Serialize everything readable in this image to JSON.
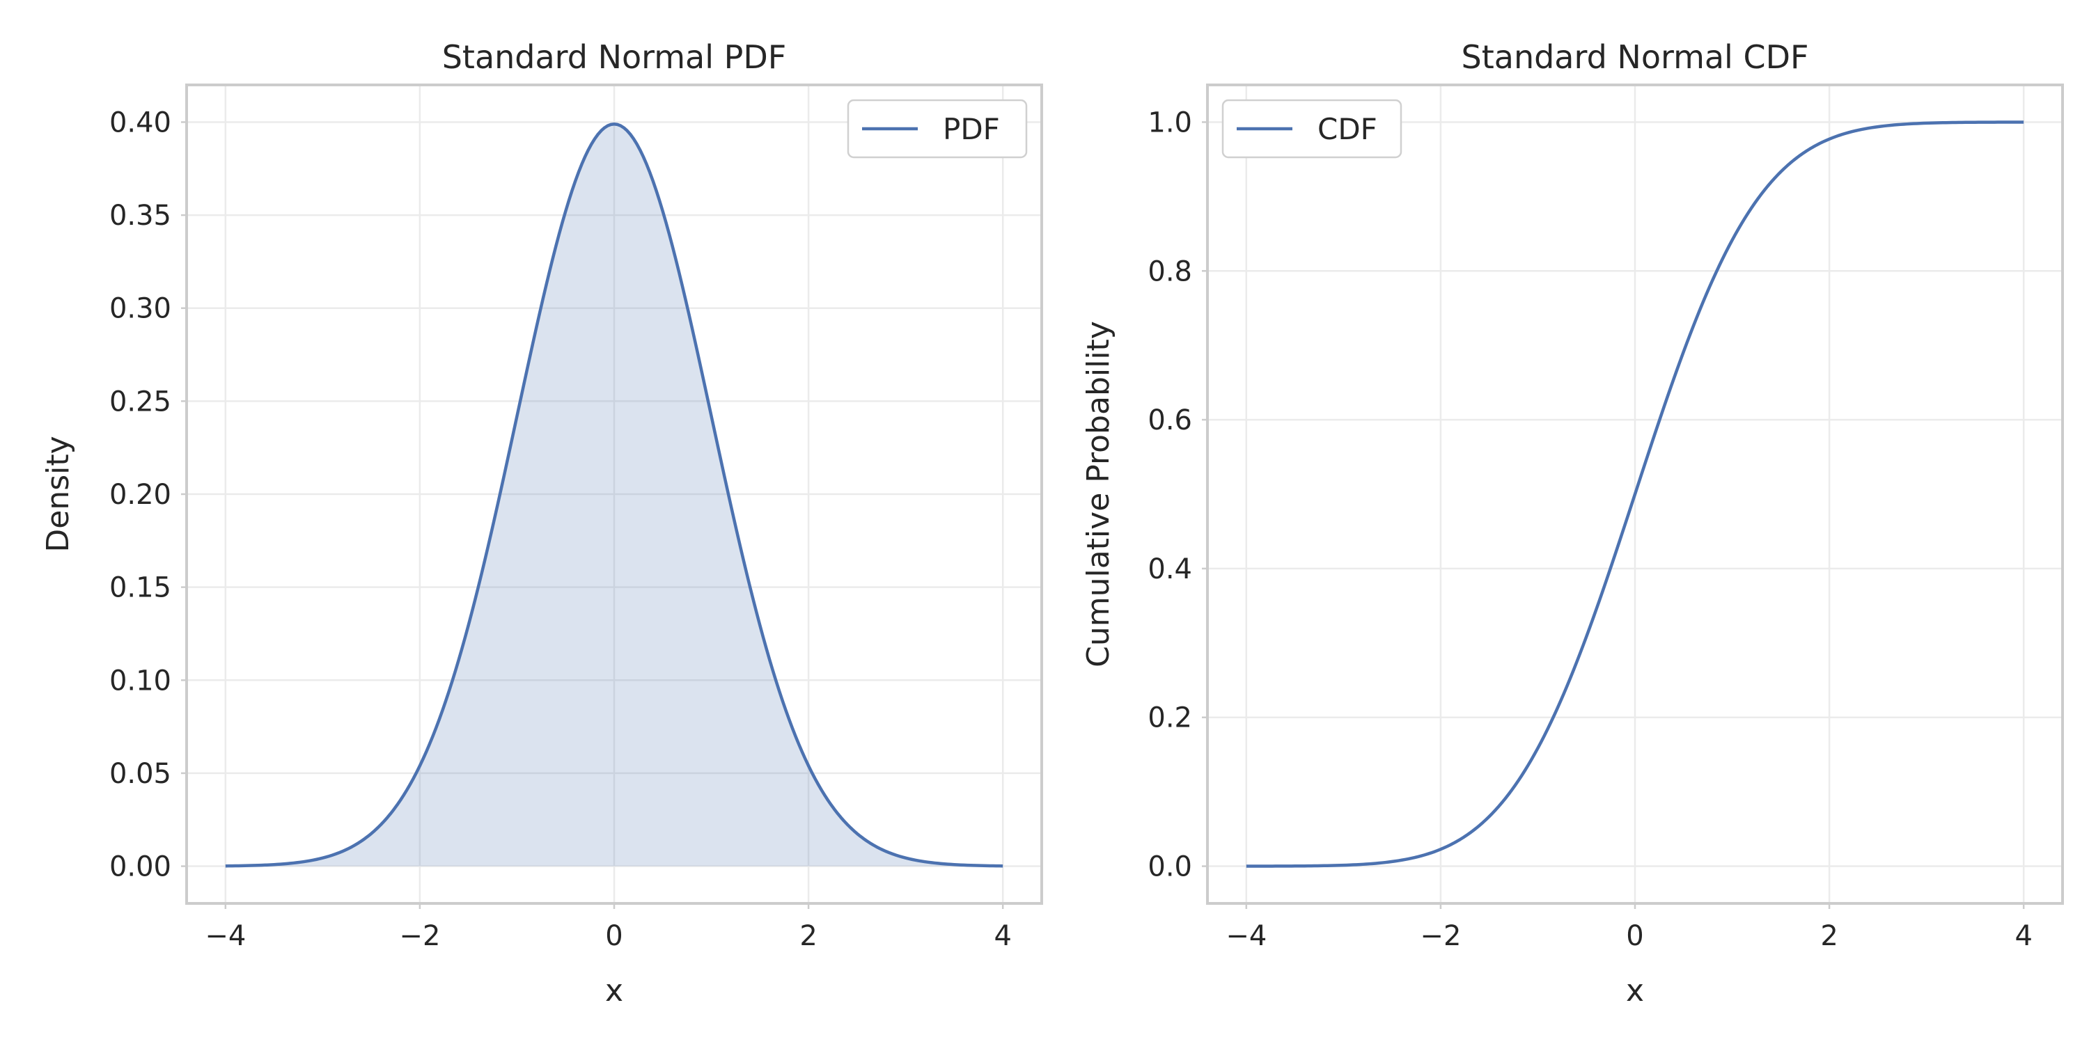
{
  "chart_data": [
    {
      "type": "area",
      "title": "Standard Normal PDF",
      "xlabel": "x",
      "ylabel": "Density",
      "xlim": [
        -4.4,
        4.4
      ],
      "ylim": [
        -0.02,
        0.42
      ],
      "xticks": [
        -4,
        -2,
        0,
        2,
        4
      ],
      "xtick_labels": [
        "−4",
        "−2",
        "0",
        "2",
        "4"
      ],
      "yticks": [
        0.0,
        0.05,
        0.1,
        0.15,
        0.2,
        0.25,
        0.3,
        0.35,
        0.4
      ],
      "ytick_labels": [
        "0.00",
        "0.05",
        "0.10",
        "0.15",
        "0.20",
        "0.25",
        "0.30",
        "0.35",
        "0.40"
      ],
      "grid": true,
      "legend_position": "top-right",
      "fill_under_curve": true,
      "series": [
        {
          "name": "PDF",
          "color": "#4c72b0",
          "fill_color": "#4c72b0",
          "x": [
            -4.0,
            -3.5,
            -3.0,
            -2.5,
            -2.0,
            -1.5,
            -1.0,
            -0.5,
            0.0,
            0.5,
            1.0,
            1.5,
            2.0,
            2.5,
            3.0,
            3.5,
            4.0
          ],
          "y": [
            0.0001,
            0.0009,
            0.0044,
            0.0175,
            0.054,
            0.1295,
            0.242,
            0.3521,
            0.3989,
            0.3521,
            0.242,
            0.1295,
            0.054,
            0.0175,
            0.0044,
            0.0009,
            0.0001
          ]
        }
      ]
    },
    {
      "type": "line",
      "title": "Standard Normal CDF",
      "xlabel": "x",
      "ylabel": "Cumulative Probability",
      "xlim": [
        -4.4,
        4.4
      ],
      "ylim": [
        -0.05,
        1.05
      ],
      "xticks": [
        -4,
        -2,
        0,
        2,
        4
      ],
      "xtick_labels": [
        "−4",
        "−2",
        "0",
        "2",
        "4"
      ],
      "yticks": [
        0.0,
        0.2,
        0.4,
        0.6,
        0.8,
        1.0
      ],
      "ytick_labels": [
        "0.0",
        "0.2",
        "0.4",
        "0.6",
        "0.8",
        "1.0"
      ],
      "grid": true,
      "legend_position": "top-left",
      "series": [
        {
          "name": "CDF",
          "color": "#4c72b0",
          "x": [
            -4.0,
            -3.5,
            -3.0,
            -2.5,
            -2.0,
            -1.5,
            -1.0,
            -0.5,
            0.0,
            0.5,
            1.0,
            1.5,
            2.0,
            2.5,
            3.0,
            3.5,
            4.0
          ],
          "y": [
            0.0,
            0.0002,
            0.0013,
            0.0062,
            0.0228,
            0.0668,
            0.1587,
            0.3085,
            0.5,
            0.6915,
            0.8413,
            0.9332,
            0.9772,
            0.9938,
            0.9987,
            0.9998,
            1.0
          ]
        }
      ]
    }
  ]
}
